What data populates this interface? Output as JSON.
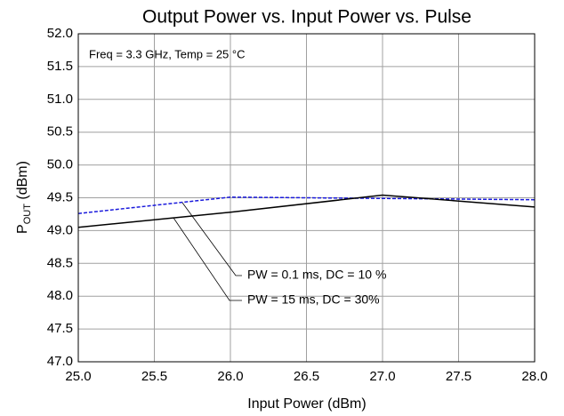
{
  "chart_data": {
    "type": "line",
    "title": "Output Power vs. Input Power vs. Pulse",
    "xlabel": "Input Power (dBm)",
    "ylabel": [
      "P",
      "OUT",
      " (dBm)"
    ],
    "annotation": "Freq = 3.3 GHz, Temp = 25 °C",
    "x": [
      25,
      26,
      27,
      28
    ],
    "series": [
      {
        "name": "PW = 0.1 ms, DC = 10 %",
        "color": "#1a1adc",
        "dashed": true,
        "values": [
          49.26,
          49.51,
          49.49,
          49.47
        ]
      },
      {
        "name": "PW = 15 ms, DC = 30%",
        "color": "#000000",
        "dashed": false,
        "values": [
          49.05,
          49.28,
          49.54,
          49.36
        ]
      }
    ],
    "xlim": [
      25,
      28
    ],
    "xticks": [
      {
        "value": 25,
        "label": "25.0"
      },
      {
        "value": 25.5,
        "label": "25.5"
      },
      {
        "value": 26,
        "label": "26.0"
      },
      {
        "value": 26.5,
        "label": "26.5"
      },
      {
        "value": 27,
        "label": "27.0"
      },
      {
        "value": 27.5,
        "label": "27.5"
      },
      {
        "value": 28,
        "label": "28.0"
      }
    ],
    "ylim": [
      47,
      52
    ],
    "yticks": [
      {
        "value": 47,
        "label": "47.0"
      },
      {
        "value": 47.5,
        "label": "47.5"
      },
      {
        "value": 48,
        "label": "48.0"
      },
      {
        "value": 48.5,
        "label": "48.5"
      },
      {
        "value": 49,
        "label": "49.0"
      },
      {
        "value": 49.5,
        "label": "49.5"
      },
      {
        "value": 50,
        "label": "50.0"
      },
      {
        "value": 50.5,
        "label": "50.5"
      },
      {
        "value": 51,
        "label": "51.0"
      },
      {
        "value": 51.5,
        "label": "51.5"
      },
      {
        "value": 52,
        "label": "52.0"
      }
    ],
    "grid": true
  }
}
